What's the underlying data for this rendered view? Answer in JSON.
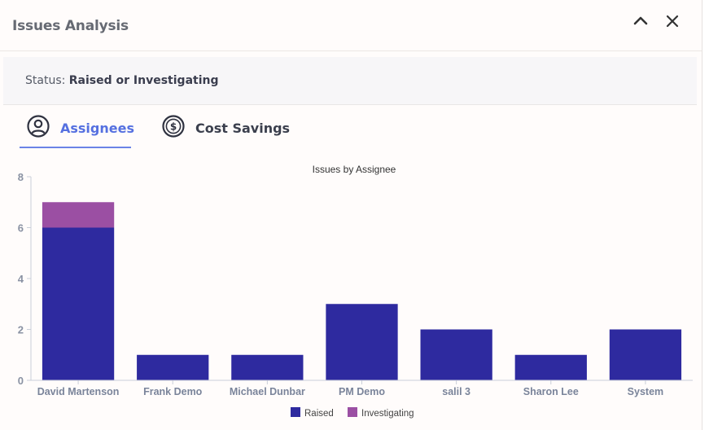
{
  "header": {
    "title": "Issues Analysis",
    "collapse_icon": "chevron-up-icon",
    "close_icon": "close-icon"
  },
  "status": {
    "label": "Status:",
    "value": "Raised or Investigating"
  },
  "tabs": [
    {
      "label": "Assignees",
      "icon": "user-circle-icon",
      "active": true
    },
    {
      "label": "Cost Savings",
      "icon": "dollar-circle-icon",
      "active": false
    }
  ],
  "colors": {
    "raised": "#2e2a9f",
    "investigating": "#9b4fa3",
    "active_tab": "#5570e0"
  },
  "chart_data": {
    "type": "bar",
    "stacked": true,
    "title": "Issues by Assignee",
    "categories": [
      "David Martenson",
      "Frank Demo",
      "Michael Dunbar",
      "PM Demo",
      "salil 3",
      "Sharon Lee",
      "System"
    ],
    "series": [
      {
        "name": "Raised",
        "values": [
          6,
          1,
          1,
          3,
          2,
          1,
          2
        ]
      },
      {
        "name": "Investigating",
        "values": [
          1,
          0,
          0,
          0,
          0,
          0,
          0
        ]
      }
    ],
    "ylim": [
      0,
      8
    ],
    "yticks": [
      0,
      2,
      4,
      6,
      8
    ],
    "legend": "bottom-center",
    "grid": false
  }
}
